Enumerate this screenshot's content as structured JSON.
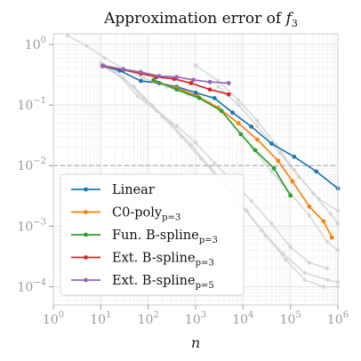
{
  "chart_data": {
    "type": "line",
    "title_text": "Approximation error of ",
    "title_var": "f",
    "title_sub": "3",
    "xlabel": "n",
    "ylabel": "",
    "x_scale": "log",
    "y_scale": "log",
    "xlim": [
      1,
      1000000
    ],
    "ylim": [
      5e-05,
      1.5
    ],
    "grid": true,
    "legend_position": "bottom-left",
    "reference_line": {
      "y": 0.01,
      "style": "dashed",
      "color": "#b0b0b0"
    },
    "x_ticks": [
      {
        "base": "10",
        "exp": "0",
        "value": 1
      },
      {
        "base": "10",
        "exp": "1",
        "value": 10
      },
      {
        "base": "10",
        "exp": "2",
        "value": 100
      },
      {
        "base": "10",
        "exp": "3",
        "value": 1000
      },
      {
        "base": "10",
        "exp": "4",
        "value": 10000
      },
      {
        "base": "10",
        "exp": "5",
        "value": 100000
      },
      {
        "base": "10",
        "exp": "6",
        "value": 1000000
      }
    ],
    "y_ticks": [
      {
        "base": "10",
        "exp": "−4",
        "value": 0.0001
      },
      {
        "base": "10",
        "exp": "−3",
        "value": 0.001
      },
      {
        "base": "10",
        "exp": "−2",
        "value": 0.01
      },
      {
        "base": "10",
        "exp": "−1",
        "value": 0.1
      },
      {
        "base": "10",
        "exp": "0",
        "value": 1
      }
    ],
    "series": [
      {
        "name": "Linear",
        "sub": "",
        "color": "#1f77b4",
        "x": [
          11,
          25,
          70,
          170,
          400,
          1000,
          2500,
          6000,
          15000,
          40000,
          120000,
          350000,
          1000000
        ],
        "y": [
          0.44,
          0.37,
          0.25,
          0.23,
          0.2,
          0.16,
          0.13,
          0.075,
          0.044,
          0.023,
          0.014,
          0.008,
          0.0042
        ]
      },
      {
        "name": "C0-poly",
        "sub": "p=3",
        "color": "#ff7f0e",
        "x": [
          130,
          400,
          1100,
          3000,
          8000,
          20000,
          55000,
          110000,
          250000,
          500000,
          750000
        ],
        "y": [
          0.25,
          0.19,
          0.14,
          0.09,
          0.05,
          0.027,
          0.012,
          0.0055,
          0.0021,
          0.0012,
          0.00065
        ]
      },
      {
        "name": "Fun. B-spline",
        "sub": "p=3",
        "color": "#2ca02c",
        "x": [
          130,
          400,
          1200,
          3500,
          9000,
          18000,
          45000,
          100000
        ],
        "y": [
          0.26,
          0.18,
          0.13,
          0.08,
          0.033,
          0.018,
          0.009,
          0.0032
        ]
      },
      {
        "name": "Ext. B-spline",
        "sub": "p=3",
        "color": "#d62728",
        "x": [
          11,
          30,
          70,
          150,
          350,
          800,
          2000,
          5000
        ],
        "y": [
          0.44,
          0.38,
          0.33,
          0.29,
          0.27,
          0.23,
          0.18,
          0.15
        ]
      },
      {
        "name": "Ext. B-spline",
        "sub": "p=5",
        "color": "#9467bd",
        "x": [
          11,
          30,
          70,
          170,
          400,
          900,
          2000,
          5000
        ],
        "y": [
          0.45,
          0.39,
          0.35,
          0.3,
          0.29,
          0.26,
          0.24,
          0.23
        ]
      }
    ],
    "background_series": [
      {
        "x": [
          2,
          5,
          12,
          30,
          80,
          250,
          700,
          2000
        ],
        "y": [
          1.4,
          0.95,
          0.6,
          0.4,
          0.28,
          0.2,
          0.15,
          0.11
        ]
      },
      {
        "x": [
          10,
          25,
          60,
          150,
          400,
          1000,
          2500,
          6000,
          15000,
          40000,
          100000,
          250000,
          600000
        ],
        "y": [
          0.45,
          0.3,
          0.14,
          0.08,
          0.045,
          0.024,
          0.011,
          0.0055,
          0.0026,
          0.0011,
          0.00045,
          0.00025,
          0.0002
        ]
      },
      {
        "x": [
          10,
          20,
          50,
          120,
          300,
          800,
          2000,
          5000,
          12000,
          30000,
          80000,
          200000,
          500000,
          1000000
        ],
        "y": [
          0.5,
          0.35,
          0.2,
          0.1,
          0.05,
          0.022,
          0.0095,
          0.0042,
          0.0018,
          0.0007,
          0.00028,
          0.00013,
          0.0001,
          0.0001
        ]
      },
      {
        "x": [
          12,
          30,
          80,
          200,
          500,
          1300,
          3500,
          9000,
          25000,
          70000,
          200000,
          600000,
          1000000
        ],
        "y": [
          0.45,
          0.28,
          0.13,
          0.065,
          0.03,
          0.013,
          0.0055,
          0.0022,
          0.00085,
          0.00035,
          0.00017,
          0.00013,
          0.00012
        ]
      },
      {
        "x": [
          1000,
          3000,
          8000,
          20000,
          50000,
          120000,
          300000,
          700000,
          1000000
        ],
        "y": [
          0.45,
          0.25,
          0.12,
          0.055,
          0.022,
          0.0085,
          0.0035,
          0.0016,
          0.0011
        ]
      },
      {
        "x": [
          3000,
          8000,
          20000,
          60000,
          150000,
          400000,
          1000000
        ],
        "y": [
          0.2,
          0.1,
          0.045,
          0.016,
          0.0065,
          0.0028,
          0.0018
        ]
      },
      {
        "x": [
          15000,
          40000,
          100000,
          250000,
          600000,
          1000000
        ],
        "y": [
          0.02,
          0.008,
          0.0035,
          0.0015,
          0.00055,
          0.0004
        ]
      }
    ]
  }
}
